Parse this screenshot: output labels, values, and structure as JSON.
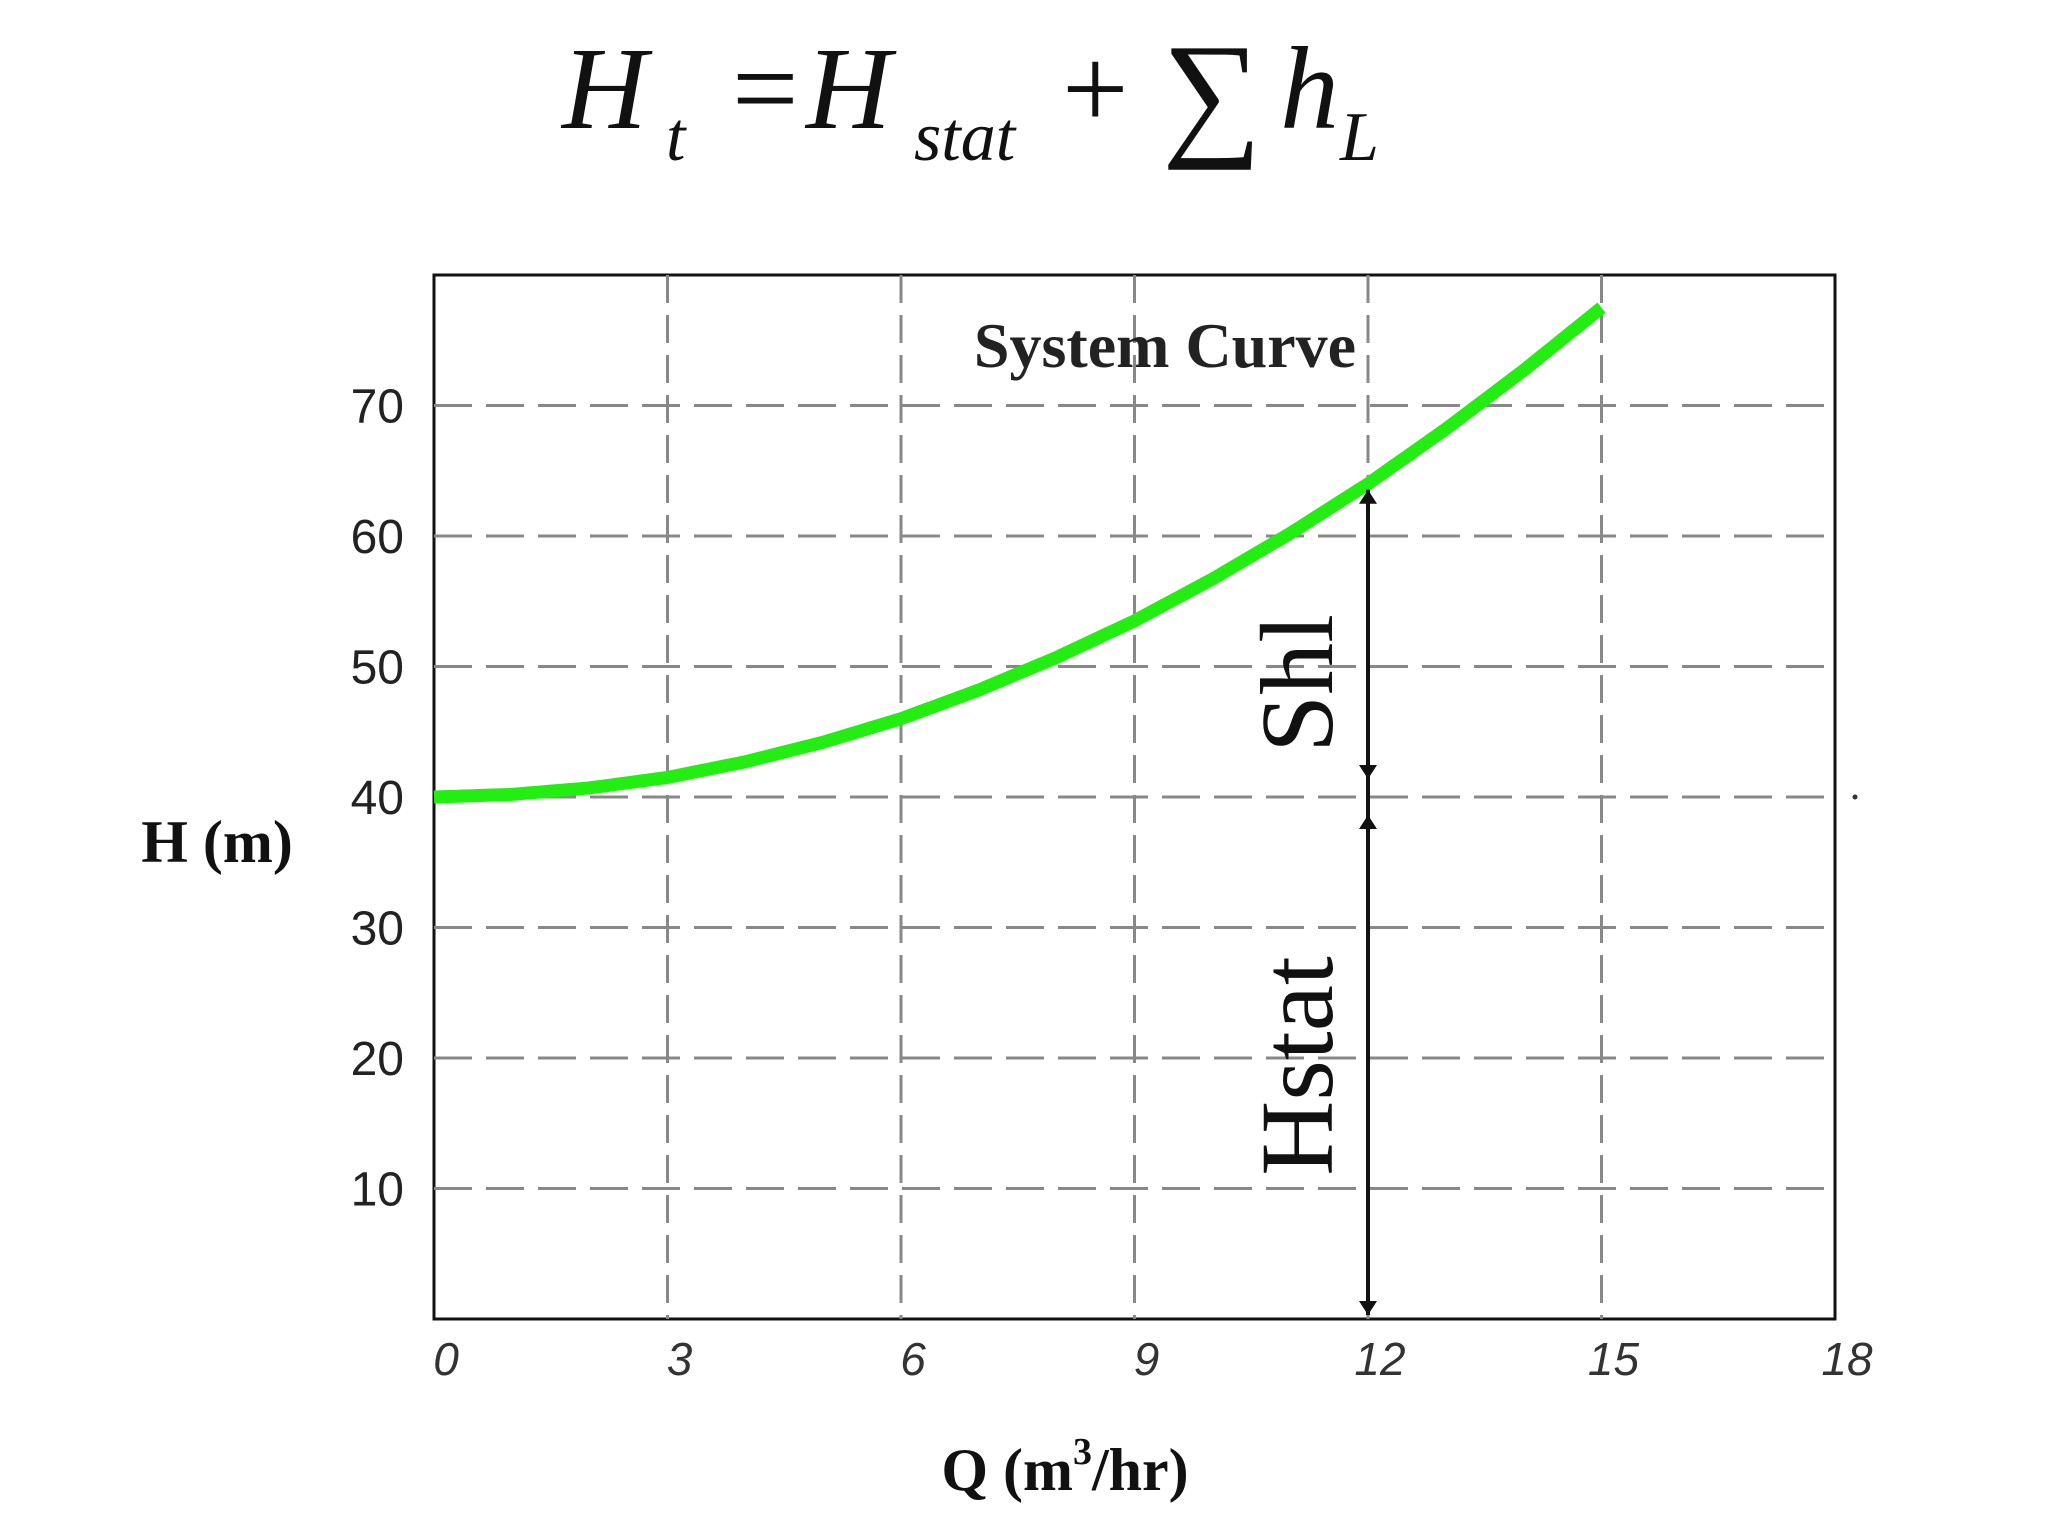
{
  "formula": {
    "lhs_symbol": "H",
    "lhs_sub": "t",
    "equals": "=",
    "stat_symbol": "H",
    "stat_sub": "stat",
    "plus": "+",
    "sum_symbol": "∑",
    "loss_symbol": "h",
    "loss_sub": "L"
  },
  "chart_data": {
    "type": "line",
    "title": "System Curve",
    "xlabel": "Q (m",
    "xlabel_sup": "3",
    "xlabel_tail": "/hr)",
    "ylabel": "H (m)",
    "xlim": [
      0,
      18
    ],
    "ylim": [
      0,
      80
    ],
    "x_ticks": [
      0,
      3,
      6,
      9,
      12,
      15,
      18
    ],
    "x_tick_labels": [
      "0",
      "3",
      "6",
      "9",
      "12",
      "15",
      "18"
    ],
    "y_ticks": [
      10,
      20,
      30,
      40,
      50,
      60,
      70
    ],
    "y_tick_labels": [
      "10",
      "20",
      "30",
      "40",
      "50",
      "60",
      "70"
    ],
    "grid": true,
    "grid_style": "dashed",
    "series": [
      {
        "color": "#22ee11",
        "x": [
          0,
          1,
          2,
          3,
          4,
          5,
          6,
          7,
          8,
          9,
          10,
          11,
          12,
          13,
          14,
          15
        ],
        "y": [
          40,
          40.2,
          40.7,
          41.5,
          42.7,
          44.2,
          46,
          48.2,
          50.7,
          53.5,
          56.7,
          60.2,
          64,
          68.2,
          72.7,
          77.5
        ]
      }
    ],
    "annotations": {
      "operating_flow": 12,
      "operating_head": 64,
      "static_head": 40,
      "hstat_label": "Hstat",
      "shl_label": "Shl"
    }
  }
}
